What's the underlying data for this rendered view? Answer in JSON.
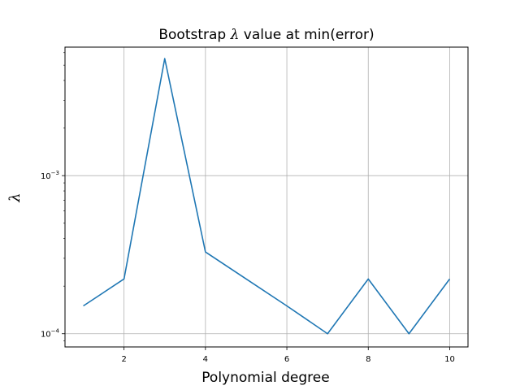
{
  "chart_data": {
    "type": "line",
    "title": "Bootstrap λ value at min(error)",
    "xlabel": "Polynomial degree",
    "ylabel": "λ",
    "yscale": "log",
    "grid": true,
    "xlim": [
      0.55,
      10.45
    ],
    "ylim": [
      8.25e-05,
      0.0065
    ],
    "x_ticks": [
      2,
      4,
      6,
      8,
      10
    ],
    "x_tick_labels": [
      "2",
      "4",
      "6",
      "8",
      "10"
    ],
    "y_ticks": [
      0.0001,
      0.001
    ],
    "y_tick_labels": [
      {
        "base": "10",
        "exp": "−4"
      },
      {
        "base": "10",
        "exp": "−3"
      }
    ],
    "series": [
      {
        "color": "#1f77b4",
        "x": [
          1,
          2,
          3,
          4,
          5,
          6,
          7,
          8,
          9,
          10
        ],
        "y": [
          0.00015,
          0.000222,
          0.0055,
          0.000329,
          0.000222,
          0.00015,
          0.0001,
          0.000222,
          0.0001,
          0.000222
        ]
      }
    ]
  }
}
